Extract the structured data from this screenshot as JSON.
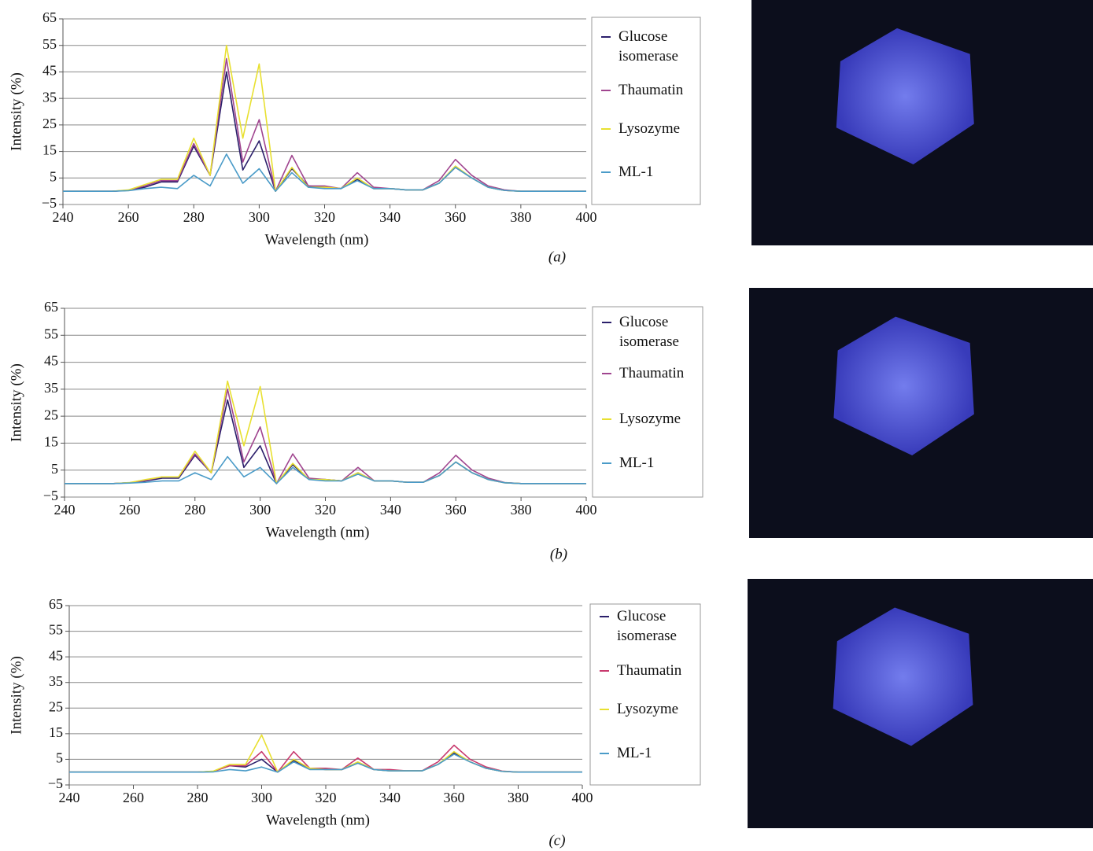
{
  "chart_data": [
    {
      "type": "line",
      "caption": "(a)",
      "ylabel": "Intensity (%)",
      "xlabel": "Wavelength (nm)",
      "x": [
        240,
        245,
        250,
        255,
        260,
        265,
        270,
        275,
        280,
        285,
        290,
        295,
        300,
        305,
        310,
        315,
        320,
        325,
        330,
        335,
        340,
        345,
        350,
        355,
        360,
        365,
        370,
        375,
        380,
        385,
        390,
        395,
        400
      ],
      "xlim": [
        240,
        400
      ],
      "xticks": [
        240,
        260,
        280,
        300,
        320,
        340,
        360,
        380,
        400
      ],
      "ylim": [
        -5,
        65
      ],
      "yticks": [
        {
          "value": -5,
          "label": "−5"
        },
        5,
        15,
        25,
        35,
        45,
        55,
        65
      ],
      "grid": true,
      "series": [
        {
          "name": "Glucose isomerase",
          "color": "#2b1f6b",
          "values": [
            0,
            0,
            0,
            0,
            0.3,
            1.5,
            3.5,
            3.5,
            17,
            6,
            45,
            8,
            19,
            0,
            8.5,
            2,
            1.5,
            1,
            4.5,
            1,
            1,
            0.5,
            0.5,
            3,
            9,
            5,
            1.5,
            0.3,
            0,
            0,
            0,
            0,
            0
          ]
        },
        {
          "name": "Thaumatin",
          "color": "#a0458f",
          "values": [
            0,
            0,
            0,
            0,
            0.4,
            2,
            4,
            4,
            18,
            6,
            50,
            11,
            27,
            0,
            13.5,
            2,
            2,
            1,
            7,
            1.5,
            1,
            0.5,
            0.5,
            4,
            12,
            6,
            2,
            0.5,
            0,
            0,
            0,
            0,
            0
          ]
        },
        {
          "name": "Lysozyme",
          "color": "#e8e030",
          "values": [
            0,
            0,
            0,
            0,
            0.5,
            2.5,
            4.5,
            4.5,
            20,
            6,
            55,
            20,
            48,
            0,
            9,
            1.5,
            1.5,
            1,
            5,
            1,
            1,
            0.5,
            0.5,
            3,
            9.5,
            5,
            1.5,
            0.3,
            0,
            0,
            0,
            0,
            0
          ]
        },
        {
          "name": "ML-1",
          "color": "#4a9bc8",
          "values": [
            0,
            0,
            0,
            0,
            0.2,
            1,
            1.5,
            1,
            6,
            2,
            14,
            3,
            8.5,
            0,
            7,
            1.5,
            1,
            1,
            4,
            1,
            1,
            0.5,
            0.5,
            3,
            9,
            5,
            1.5,
            0.3,
            0,
            0,
            0,
            0,
            0
          ]
        }
      ]
    },
    {
      "type": "line",
      "caption": "(b)",
      "ylabel": "Intensity (%)",
      "xlabel": "Wavelength (nm)",
      "x": [
        240,
        245,
        250,
        255,
        260,
        265,
        270,
        275,
        280,
        285,
        290,
        295,
        300,
        305,
        310,
        315,
        320,
        325,
        330,
        335,
        340,
        345,
        350,
        355,
        360,
        365,
        370,
        375,
        380,
        385,
        390,
        395,
        400
      ],
      "xlim": [
        240,
        400
      ],
      "xticks": [
        240,
        260,
        280,
        300,
        320,
        340,
        360,
        380,
        400
      ],
      "ylim": [
        -5,
        65
      ],
      "yticks": [
        {
          "value": -5,
          "label": "−5"
        },
        5,
        15,
        25,
        35,
        45,
        55,
        65
      ],
      "grid": true,
      "series": [
        {
          "name": "Glucose isomerase",
          "color": "#2b1f6b",
          "values": [
            0,
            0,
            0,
            0,
            0.3,
            1,
            2,
            2,
            10.5,
            4,
            31,
            6,
            14,
            0,
            7,
            1.5,
            1.5,
            1,
            4,
            1,
            1,
            0.5,
            0.5,
            3,
            8,
            4,
            1.5,
            0.3,
            0,
            0,
            0,
            0,
            0
          ]
        },
        {
          "name": "Thaumatin",
          "color": "#a0458f",
          "values": [
            0,
            0,
            0,
            0,
            0.3,
            1.2,
            2.5,
            2.5,
            11,
            4,
            35,
            8,
            21,
            0,
            11,
            2,
            1.5,
            1,
            6,
            1,
            1,
            0.5,
            0.5,
            4,
            10.5,
            5,
            2,
            0.4,
            0,
            0,
            0,
            0,
            0
          ]
        },
        {
          "name": "Lysozyme",
          "color": "#e8e030",
          "values": [
            0,
            0,
            0,
            0,
            0.4,
            1.5,
            2.5,
            2.5,
            12,
            4,
            38,
            14,
            36,
            0,
            7.5,
            1.5,
            1.5,
            1,
            4,
            1,
            1,
            0.5,
            0.5,
            3,
            8,
            4,
            1.5,
            0.3,
            0,
            0,
            0,
            0,
            0
          ]
        },
        {
          "name": "ML-1",
          "color": "#4a9bc8",
          "values": [
            0,
            0,
            0,
            0,
            0.2,
            0.5,
            1,
            1,
            4,
            1.5,
            10,
            2.5,
            6,
            0,
            6,
            1.5,
            1,
            1,
            3.5,
            1,
            1,
            0.5,
            0.5,
            3,
            8,
            4,
            1.5,
            0.3,
            0,
            0,
            0,
            0,
            0
          ]
        }
      ]
    },
    {
      "type": "line",
      "caption": "(c)",
      "ylabel": "Intensity (%)",
      "xlabel": "Wavelength (nm)",
      "x": [
        240,
        245,
        250,
        255,
        260,
        265,
        270,
        275,
        280,
        285,
        290,
        295,
        300,
        305,
        310,
        315,
        320,
        325,
        330,
        335,
        340,
        345,
        350,
        355,
        360,
        365,
        370,
        375,
        380,
        385,
        390,
        395,
        400
      ],
      "xlim": [
        240,
        400
      ],
      "xticks": [
        240,
        260,
        280,
        300,
        320,
        340,
        360,
        380,
        400
      ],
      "ylim": [
        -5,
        65
      ],
      "yticks": [
        {
          "value": -5,
          "label": "−5"
        },
        5,
        15,
        25,
        35,
        45,
        55,
        65
      ],
      "grid": true,
      "series": [
        {
          "name": "Glucose isomerase",
          "color": "#2b1f6b",
          "values": [
            0,
            0,
            0,
            0,
            0,
            0,
            0,
            0,
            0,
            0.3,
            2.5,
            2,
            5,
            0,
            4.5,
            1.5,
            1,
            1,
            3.5,
            1,
            0.5,
            0.5,
            0.5,
            3,
            7.5,
            4,
            1.5,
            0.3,
            0,
            0,
            0,
            0,
            0
          ]
        },
        {
          "name": "Thaumatin",
          "color": "#c83a6e",
          "values": [
            0,
            0,
            0,
            0,
            0,
            0,
            0,
            0,
            0,
            0.3,
            2.5,
            2.5,
            8,
            0,
            8,
            1.5,
            1.5,
            1,
            5.5,
            1,
            1,
            0.5,
            0.5,
            4,
            10.5,
            5,
            2,
            0.4,
            0,
            0,
            0,
            0,
            0
          ]
        },
        {
          "name": "Lysozyme",
          "color": "#e8e030",
          "values": [
            0,
            0,
            0,
            0,
            0,
            0,
            0,
            0,
            0,
            0.4,
            3,
            3,
            14.5,
            0,
            5,
            1.5,
            1,
            1,
            4,
            1,
            0.5,
            0.5,
            0.5,
            3,
            8,
            4,
            1.5,
            0.3,
            0,
            0,
            0,
            0,
            0
          ]
        },
        {
          "name": "ML-1",
          "color": "#4a9bc8",
          "values": [
            0,
            0,
            0,
            0,
            0,
            0,
            0,
            0,
            0,
            0.1,
            1,
            0.5,
            2,
            0,
            4,
            1,
            1,
            1,
            3.5,
            1,
            0.5,
            0.5,
            0.5,
            3,
            7,
            4,
            1.5,
            0.3,
            0,
            0,
            0,
            0,
            0
          ]
        }
      ]
    }
  ]
}
